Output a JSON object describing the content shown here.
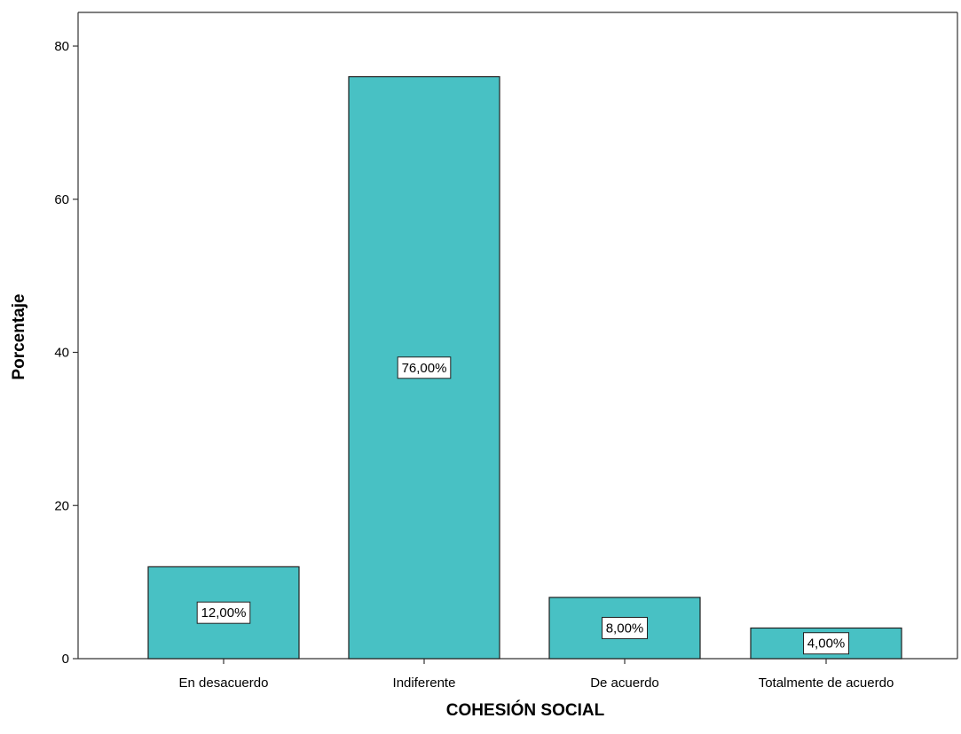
{
  "chart_data": {
    "type": "bar",
    "categories": [
      "En desacuerdo",
      "Indiferente",
      "De acuerdo",
      "Totalmente de acuerdo"
    ],
    "values": [
      12,
      76,
      8,
      4
    ],
    "data_labels": [
      "12,00%",
      "76,00%",
      "8,00%",
      "4,00%"
    ],
    "xlabel": "COHESIÓN SOCIAL",
    "ylabel": "Porcentaje",
    "ylim": [
      0,
      80
    ],
    "yticks": [
      0,
      20,
      40,
      60,
      80
    ],
    "ytick_labels": [
      "0",
      "20",
      "40",
      "60",
      "80"
    ],
    "grid": false,
    "legend": "none",
    "colors": {
      "bar_fill": "#48c1c4",
      "bar_stroke": "#1f1f1f",
      "label_box": "#ffffff"
    }
  }
}
